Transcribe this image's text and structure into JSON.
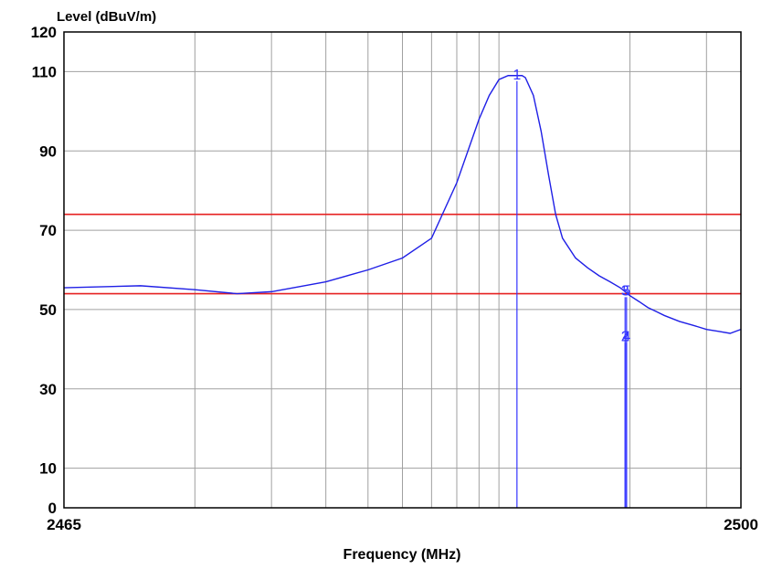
{
  "chart_data": {
    "type": "line",
    "title": "",
    "ylabel": "Level (dBuV/m)",
    "xlabel": "Frequency (MHz)",
    "xlim": [
      2465,
      2500
    ],
    "ylim": [
      0,
      120
    ],
    "x_tick_labels": [
      "2465",
      "2500"
    ],
    "y_ticks": [
      0,
      10,
      30,
      50,
      70,
      90,
      110,
      120
    ],
    "x_log_scale": true,
    "grid": true,
    "colors": {
      "trace": "#1f1fe6",
      "limit": "#e62020",
      "marker": "#3333ff",
      "grid": "#a0a0a0",
      "frame": "#000000"
    },
    "series": [
      {
        "values_x": [
          2465.0,
          2465.5,
          2466.0,
          2466.5,
          2467.0,
          2468.0,
          2469.0,
          2470.0,
          2471.0,
          2472.0,
          2473.0,
          2473.5,
          2474.0,
          2474.5,
          2474.7,
          2475.0,
          2475.3,
          2475.5,
          2476.0,
          2476.5,
          2477.0,
          2477.5,
          2478.0,
          2479.0,
          2480.0,
          2481.0,
          2482.0,
          2483.0,
          2483.5,
          2484.0,
          2485.0,
          2486.0,
          2487.0,
          2488.0,
          2490.0,
          2492.0,
          2494.0,
          2496.0,
          2498.0,
          2500.0
        ],
        "values_y": [
          55.5,
          56.0,
          55.0,
          54.0,
          54.5,
          57.0,
          60.0,
          63.0,
          68.0,
          82.0,
          98.0,
          104.0,
          108.0,
          109.0,
          109.0,
          109.0,
          109.0,
          108.5,
          104.0,
          95.0,
          84.0,
          74.0,
          68.0,
          63.0,
          60.5,
          58.5,
          57.0,
          55.5,
          54.5,
          53.5,
          52.0,
          50.5,
          49.5,
          48.5,
          47.0,
          46.0,
          45.0,
          44.5,
          44.0,
          45.0
        ]
      }
    ],
    "limit_lines": [
      74,
      54
    ],
    "markers": [
      {
        "label": "1",
        "x": 2475.0,
        "y": 109.0
      },
      {
        "label": "3",
        "x": 2483.5,
        "y": 54.5
      },
      {
        "label": "5",
        "x": 2483.65,
        "y": 54.5
      },
      {
        "label": "2",
        "x": 2483.5,
        "y": 43.0
      },
      {
        "label": "4",
        "x": 2483.65,
        "y": 43.0
      }
    ]
  }
}
